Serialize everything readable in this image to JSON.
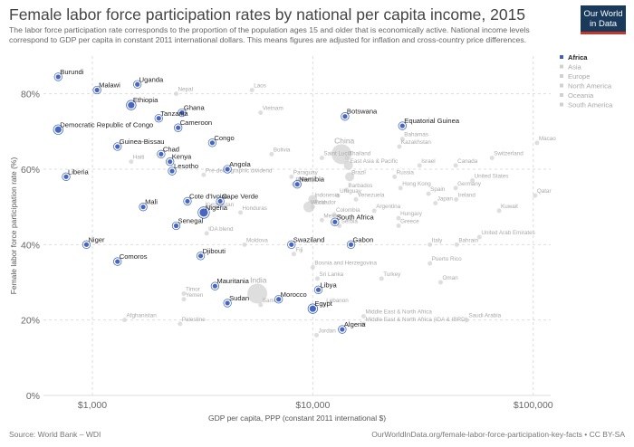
{
  "header": {
    "title": "Female labor force participation rates by national per capita income, 2015",
    "subtitle": "The labor force participation rate corresponds to the proportion of the population ages 15 and older that is economically active. National income levels correspond to GDP per capita in constant 2011 international dollars. This means figures are adjusted for inflation and cross-country price differences."
  },
  "logo": {
    "line1": "Our World",
    "line2": "in Data"
  },
  "footer": {
    "source": "Source: World Bank – WDI",
    "url": "OurWorldInData.org/female-labor-force-participation-key-facts • CC BY-SA"
  },
  "chart_data": {
    "type": "scatter",
    "title": "Female labor force participation rates by national per capita income, 2015",
    "xlabel": "GDP per capita, PPP (constant 2011 international $)",
    "ylabel": "Female labor force participation rate (%)",
    "xscale": "log",
    "xlim": [
      600,
      120000
    ],
    "ylim": [
      0,
      90
    ],
    "xticks": [
      1000,
      10000,
      100000
    ],
    "xtick_labels": [
      "$1,000",
      "$10,000",
      "$100,000"
    ],
    "yticks": [
      0,
      20,
      40,
      60,
      80
    ],
    "ytick_labels": [
      "0%",
      "20%",
      "40%",
      "60%",
      "80%"
    ],
    "grid": true,
    "legend_position": "right",
    "colors": {
      "Africa": "#3b5fc0",
      "other": "#d0d0d0",
      "other_label": "#a8a8a8",
      "grid": "#dddddd"
    },
    "legend": [
      "Africa",
      "Asia",
      "Europe",
      "North America",
      "Oceania",
      "South America"
    ],
    "series": [
      {
        "name": "Africa",
        "points": [
          {
            "x": 700,
            "y": 84.5,
            "label": "Burundi"
          },
          {
            "x": 1050,
            "y": 81,
            "label": "Malawi"
          },
          {
            "x": 1600,
            "y": 82.5,
            "label": "Uganda"
          },
          {
            "x": 1500,
            "y": 77,
            "label": "Ethiopia"
          },
          {
            "x": 2550,
            "y": 75,
            "label": "Ghana"
          },
          {
            "x": 2000,
            "y": 73.5,
            "label": "Tanzania"
          },
          {
            "x": 2450,
            "y": 71,
            "label": "Cameroon"
          },
          {
            "x": 700,
            "y": 70.5,
            "label": "Democratic Republic of Congo"
          },
          {
            "x": 1300,
            "y": 66,
            "label": "Guinea-Bissau"
          },
          {
            "x": 3500,
            "y": 67,
            "label": "Congo"
          },
          {
            "x": 2050,
            "y": 64,
            "label": "Chad"
          },
          {
            "x": 2250,
            "y": 62,
            "label": "Kenya"
          },
          {
            "x": 2300,
            "y": 59.5,
            "label": "Lesotho"
          },
          {
            "x": 4100,
            "y": 60,
            "label": "Angola"
          },
          {
            "x": 760,
            "y": 58,
            "label": "Liberia"
          },
          {
            "x": 8500,
            "y": 56,
            "label": "Namibia"
          },
          {
            "x": 1700,
            "y": 50,
            "label": "Mali"
          },
          {
            "x": 2700,
            "y": 51.5,
            "label": "Cote d'Ivoire"
          },
          {
            "x": 3800,
            "y": 51.5,
            "label": "Cape Verde"
          },
          {
            "x": 3200,
            "y": 48.5,
            "label": "Nigeria"
          },
          {
            "x": 2400,
            "y": 45,
            "label": "Senegal"
          },
          {
            "x": 12600,
            "y": 46,
            "label": "South Africa"
          },
          {
            "x": 940,
            "y": 40,
            "label": "Niger"
          },
          {
            "x": 8000,
            "y": 40,
            "label": "Swaziland"
          },
          {
            "x": 14900,
            "y": 40,
            "label": "Gabon"
          },
          {
            "x": 1300,
            "y": 35.5,
            "label": "Comoros"
          },
          {
            "x": 3100,
            "y": 37,
            "label": "Djibouti"
          },
          {
            "x": 3600,
            "y": 29,
            "label": "Mauritania"
          },
          {
            "x": 10600,
            "y": 28,
            "label": "Libya"
          },
          {
            "x": 4100,
            "y": 24.5,
            "label": "Sudan"
          },
          {
            "x": 7000,
            "y": 25.5,
            "label": "Morocco"
          },
          {
            "x": 10000,
            "y": 23,
            "label": "Egypt"
          },
          {
            "x": 13600,
            "y": 17.5,
            "label": "Algeria"
          },
          {
            "x": 25500,
            "y": 71.5,
            "label": "Equatorial Guinea"
          },
          {
            "x": 14000,
            "y": 74,
            "label": "Botswana"
          }
        ]
      },
      {
        "name": "other",
        "points": [
          {
            "x": 2400,
            "y": 80,
            "label": "Nepal"
          },
          {
            "x": 5300,
            "y": 81,
            "label": "Laos"
          },
          {
            "x": 5800,
            "y": 75,
            "label": "Vietnam"
          },
          {
            "x": 13500,
            "y": 64,
            "label": "China"
          },
          {
            "x": 11000,
            "y": 63,
            "label": "Saint Lucia"
          },
          {
            "x": 14300,
            "y": 63,
            "label": "Thailand"
          },
          {
            "x": 14500,
            "y": 61,
            "label": "East Asia & Pacific"
          },
          {
            "x": 6500,
            "y": 64,
            "label": "Bolivia"
          },
          {
            "x": 3200,
            "y": 58.5,
            "label": "Pre-demographic dividend"
          },
          {
            "x": 1500,
            "y": 62,
            "label": "Haiti"
          },
          {
            "x": 8000,
            "y": 58,
            "label": "Paraguay"
          },
          {
            "x": 8200,
            "y": 56,
            "label": "Belize"
          },
          {
            "x": 8700,
            "y": 56,
            "label": "Peru"
          },
          {
            "x": 14700,
            "y": 58,
            "label": "Brazil"
          },
          {
            "x": 23500,
            "y": 58,
            "label": "Russia"
          },
          {
            "x": 25000,
            "y": 55,
            "label": "Hong Kong"
          },
          {
            "x": 14200,
            "y": 54.5,
            "label": "Barbados"
          },
          {
            "x": 13000,
            "y": 53,
            "label": "Uruguay"
          },
          {
            "x": 15700,
            "y": 52,
            "label": "Venezuela"
          },
          {
            "x": 10000,
            "y": 52,
            "label": "Indonesia"
          },
          {
            "x": 10000,
            "y": 50,
            "label": "Ecuador"
          },
          {
            "x": 9600,
            "y": 50,
            "label": "World"
          },
          {
            "x": 3200,
            "y": 49.5,
            "label": "Kyrgyzstan"
          },
          {
            "x": 4700,
            "y": 48.5,
            "label": "Honduras"
          },
          {
            "x": 19000,
            "y": 49,
            "label": "Argentina"
          },
          {
            "x": 12500,
            "y": 48,
            "label": "Colombia"
          },
          {
            "x": 11000,
            "y": 46.5,
            "label": "Mexico"
          },
          {
            "x": 13200,
            "y": 45,
            "label": "Serbia"
          },
          {
            "x": 24500,
            "y": 47,
            "label": "Hungary"
          },
          {
            "x": 24500,
            "y": 45,
            "label": "Greece"
          },
          {
            "x": 3300,
            "y": 43,
            "label": "IDA blend"
          },
          {
            "x": 4900,
            "y": 40,
            "label": "Moldova"
          },
          {
            "x": 8200,
            "y": 37.5,
            "label": "Fiji"
          },
          {
            "x": 57000,
            "y": 42,
            "label": "United Arab Emirates"
          },
          {
            "x": 34000,
            "y": 40,
            "label": "Italy"
          },
          {
            "x": 45000,
            "y": 40,
            "label": "Bahrain"
          },
          {
            "x": 10000,
            "y": 34,
            "label": "Bosnia and Herzegovina"
          },
          {
            "x": 34000,
            "y": 35,
            "label": "Puerto Rico"
          },
          {
            "x": 20500,
            "y": 31,
            "label": "Turkey"
          },
          {
            "x": 38000,
            "y": 30,
            "label": "Oman"
          },
          {
            "x": 10500,
            "y": 31,
            "label": "Sri Lanka"
          },
          {
            "x": 5600,
            "y": 27,
            "label": "India"
          },
          {
            "x": 2600,
            "y": 27,
            "label": "Timor"
          },
          {
            "x": 2600,
            "y": 25.5,
            "label": "Yemen"
          },
          {
            "x": 5800,
            "y": 24,
            "label": "Samoa"
          },
          {
            "x": 11300,
            "y": 24,
            "label": "Lebanon"
          },
          {
            "x": 17000,
            "y": 21,
            "label": "Middle East & North Africa"
          },
          {
            "x": 17000,
            "y": 19,
            "label": "Middle East & North Africa (IDA & IBRD)"
          },
          {
            "x": 50000,
            "y": 20,
            "label": "Saudi Arabia"
          },
          {
            "x": 1400,
            "y": 20,
            "label": "Afghanistan"
          },
          {
            "x": 2500,
            "y": 19,
            "label": "Palestine"
          },
          {
            "x": 10400,
            "y": 16,
            "label": "Jordan"
          },
          {
            "x": 25500,
            "y": 68,
            "label": "Bahamas"
          },
          {
            "x": 24700,
            "y": 66,
            "label": "Kazakhstan"
          },
          {
            "x": 104000,
            "y": 67,
            "label": "Macao"
          },
          {
            "x": 65000,
            "y": 63,
            "label": "Switzerland"
          },
          {
            "x": 44500,
            "y": 61,
            "label": "Canada"
          },
          {
            "x": 30500,
            "y": 61,
            "label": "Israel"
          },
          {
            "x": 53000,
            "y": 57,
            "label": "United States"
          },
          {
            "x": 44500,
            "y": 55,
            "label": "Germany"
          },
          {
            "x": 33500,
            "y": 53.5,
            "label": "Spain"
          },
          {
            "x": 44700,
            "y": 52,
            "label": "Ireland"
          },
          {
            "x": 36000,
            "y": 51,
            "label": "Japan"
          },
          {
            "x": 102000,
            "y": 53,
            "label": "Qatar"
          },
          {
            "x": 70000,
            "y": 49,
            "label": "Kuwait"
          }
        ]
      }
    ]
  }
}
